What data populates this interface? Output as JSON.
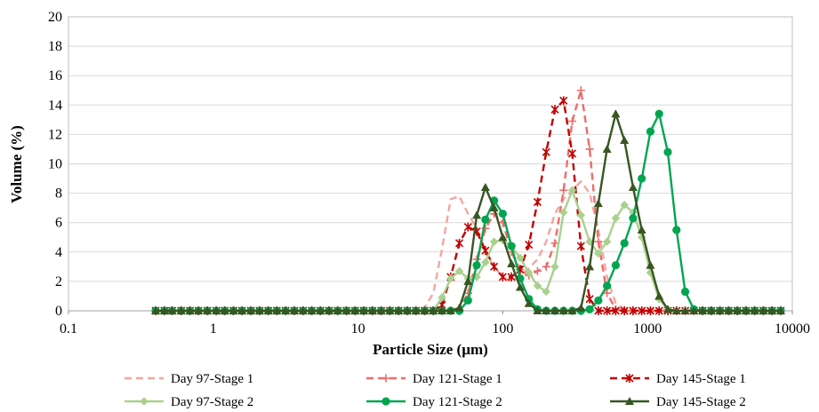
{
  "chart_data": {
    "type": "line",
    "title": "",
    "xlabel": "Particle Size (µm)",
    "ylabel": "Volume (%)",
    "xscale": "log",
    "xlim": [
      0.1,
      10000
    ],
    "ylim": [
      0,
      20
    ],
    "xticks": [
      0.1,
      1,
      10,
      100,
      1000,
      10000
    ],
    "xtick_labels": [
      "0.1",
      "1",
      "10",
      "100",
      "1000",
      "10000"
    ],
    "yticks": [
      0,
      2,
      4,
      6,
      8,
      10,
      12,
      14,
      16,
      18,
      20
    ],
    "ytick_labels": [
      "0",
      "2",
      "4",
      "6",
      "8",
      "10",
      "12",
      "14",
      "16",
      "18",
      "20"
    ],
    "grid": "horizontal",
    "legend_position": "bottom",
    "x": [
      0.4,
      0.46,
      0.52,
      0.6,
      0.69,
      0.79,
      0.91,
      1.05,
      1.2,
      1.38,
      1.58,
      1.82,
      2.09,
      2.4,
      2.75,
      3.16,
      3.63,
      4.17,
      4.79,
      5.5,
      6.31,
      7.24,
      8.32,
      9.55,
      10.96,
      12.59,
      14.45,
      16.6,
      19.05,
      21.88,
      25.12,
      28.84,
      33.11,
      38.02,
      43.65,
      50.12,
      57.54,
      66.07,
      75.86,
      87.1,
      100.0,
      114.8,
      131.8,
      151.4,
      173.8,
      199.5,
      229.1,
      263.0,
      302.0,
      346.7,
      398.1,
      457.1,
      524.8,
      602.6,
      691.8,
      794.3,
      912.0,
      1047,
      1202,
      1380,
      1585,
      1820,
      2089,
      2399,
      2754,
      3162,
      3631,
      4169,
      4786,
      5495,
      6310,
      7244,
      8318
    ],
    "series": [
      {
        "name": "Day 97-Stage 1",
        "color": "#F4A6A0",
        "dash": "dash",
        "marker": "none",
        "values": [
          0,
          0,
          0,
          0,
          0,
          0,
          0,
          0,
          0,
          0,
          0,
          0,
          0,
          0,
          0,
          0,
          0,
          0,
          0,
          0,
          0,
          0,
          0,
          0,
          0,
          0,
          0,
          0,
          0,
          0,
          0,
          0.2,
          1.2,
          4.2,
          7.6,
          7.8,
          6.6,
          5.6,
          4.0,
          3.0,
          2.3,
          2.0,
          2.4,
          2.9,
          3.5,
          4.7,
          6.6,
          7.6,
          8.2,
          8.8,
          8.0,
          5.5,
          2.3,
          0.5,
          0.1,
          0,
          0,
          0,
          0,
          0,
          0,
          0,
          0,
          0,
          0,
          0,
          0,
          0,
          0,
          0,
          0,
          0,
          0
        ]
      },
      {
        "name": "Day 121-Stage 1",
        "color": "#EE6B6B",
        "dash": "dash",
        "marker": "plus",
        "values": [
          0,
          0,
          0,
          0,
          0,
          0,
          0,
          0,
          0,
          0,
          0,
          0,
          0,
          0,
          0,
          0,
          0,
          0,
          0,
          0,
          0,
          0,
          0,
          0,
          0,
          0,
          0,
          0,
          0,
          0,
          0,
          0,
          0,
          0,
          0,
          0.1,
          1.2,
          3.5,
          5.6,
          6.6,
          6.0,
          4.0,
          2.8,
          2.4,
          2.7,
          3.0,
          4.6,
          8.2,
          12.9,
          15.0,
          11.0,
          4.7,
          1.2,
          0.1,
          0,
          0,
          0,
          0,
          0,
          0,
          0,
          0,
          0,
          0,
          0,
          0,
          0,
          0,
          0,
          0,
          0,
          0,
          0
        ]
      },
      {
        "name": "Day 145-Stage 1",
        "color": "#C00000",
        "dash": "dash",
        "marker": "star",
        "values": [
          0,
          0,
          0,
          0,
          0,
          0,
          0,
          0,
          0,
          0,
          0,
          0,
          0,
          0,
          0,
          0,
          0,
          0,
          0,
          0,
          0,
          0,
          0,
          0,
          0,
          0,
          0,
          0,
          0,
          0,
          0,
          0,
          0,
          0.4,
          2.3,
          4.6,
          5.7,
          5.4,
          4.1,
          3.0,
          2.3,
          2.3,
          2.8,
          4.5,
          7.4,
          10.8,
          13.7,
          14.3,
          10.7,
          4.4,
          0.8,
          0,
          0,
          0,
          0,
          0,
          0,
          0,
          0,
          0,
          0,
          0,
          0,
          0,
          0,
          0,
          0,
          0,
          0,
          0,
          0,
          0,
          0
        ]
      },
      {
        "name": "Day 97-Stage 2",
        "color": "#A9D18E",
        "dash": "solid",
        "marker": "diamond",
        "values": [
          0,
          0,
          0,
          0,
          0,
          0,
          0,
          0,
          0,
          0,
          0,
          0,
          0,
          0,
          0,
          0,
          0,
          0,
          0,
          0,
          0,
          0,
          0,
          0,
          0,
          0,
          0,
          0,
          0,
          0,
          0,
          0,
          0,
          0.9,
          2.2,
          2.7,
          2.2,
          2.3,
          3.3,
          4.7,
          4.8,
          4.4,
          3.6,
          2.6,
          1.7,
          1.3,
          3.0,
          6.7,
          8.2,
          6.5,
          4.7,
          3.9,
          4.7,
          6.3,
          7.2,
          6.7,
          5.0,
          2.6,
          0.8,
          0.1,
          0,
          0,
          0,
          0,
          0,
          0,
          0,
          0,
          0,
          0,
          0,
          0,
          0
        ]
      },
      {
        "name": "Day 121-Stage 2",
        "color": "#00A550",
        "dash": "solid",
        "marker": "circle",
        "values": [
          0,
          0,
          0,
          0,
          0,
          0,
          0,
          0,
          0,
          0,
          0,
          0,
          0,
          0,
          0,
          0,
          0,
          0,
          0,
          0,
          0,
          0,
          0,
          0,
          0,
          0,
          0,
          0,
          0,
          0,
          0,
          0,
          0,
          0,
          0,
          0,
          0.7,
          3.1,
          6.2,
          7.5,
          6.6,
          4.4,
          2.2,
          0.8,
          0.1,
          0,
          0,
          0,
          0,
          0,
          0.1,
          0.7,
          1.7,
          3.1,
          4.6,
          6.3,
          9.0,
          12.2,
          13.4,
          10.8,
          5.5,
          1.3,
          0.1,
          0,
          0,
          0,
          0,
          0,
          0,
          0,
          0,
          0,
          0
        ]
      },
      {
        "name": "Day 145-Stage 2",
        "color": "#375623",
        "dash": "solid",
        "marker": "triangle",
        "values": [
          0,
          0,
          0,
          0,
          0,
          0,
          0,
          0,
          0,
          0,
          0,
          0,
          0,
          0,
          0,
          0,
          0,
          0,
          0,
          0,
          0,
          0,
          0,
          0,
          0,
          0,
          0,
          0,
          0,
          0,
          0,
          0,
          0,
          0,
          0,
          0.2,
          2.0,
          6.5,
          8.4,
          7.0,
          5.0,
          3.2,
          1.6,
          0.5,
          0,
          0,
          0,
          0,
          0,
          0.2,
          3.0,
          7.3,
          11.0,
          13.4,
          11.6,
          8.4,
          5.5,
          3.1,
          1.0,
          0.1,
          0,
          0,
          0,
          0,
          0,
          0,
          0,
          0,
          0,
          0,
          0,
          0,
          0
        ]
      }
    ]
  }
}
